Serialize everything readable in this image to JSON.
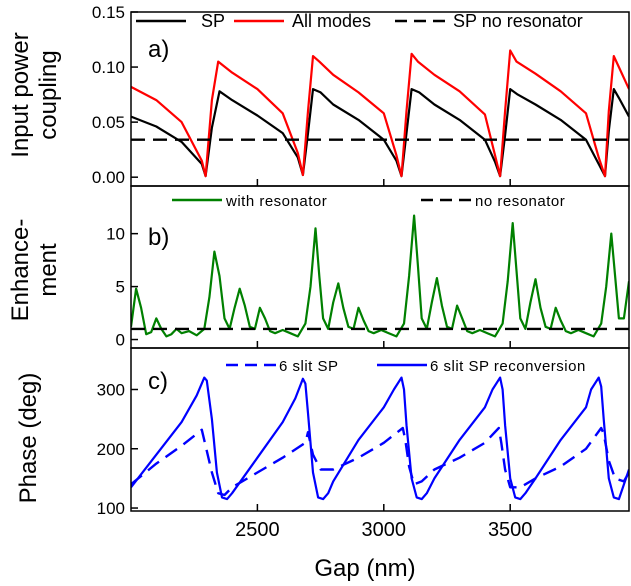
{
  "chart_data": [
    {
      "type": "line",
      "panel_label": "a)",
      "ylabel_lines": [
        "Input power",
        "coupling"
      ],
      "xlim": [
        2000,
        3970
      ],
      "ylim": [
        -0.008,
        0.15
      ],
      "yticks": [
        0.0,
        0.05,
        0.1,
        0.15
      ],
      "ytick_labels": [
        "0.00",
        "0.05",
        "0.10",
        "0.15"
      ],
      "legend_position": "top",
      "series": [
        {
          "name": "SP",
          "color": "#000000",
          "dash": "solid",
          "x": [
            2000,
            2100,
            2200,
            2280,
            2295,
            2320,
            2350,
            2400,
            2500,
            2600,
            2660,
            2680,
            2700,
            2720,
            2750,
            2800,
            2900,
            3000,
            3050,
            3070,
            3090,
            3110,
            3140,
            3200,
            3300,
            3400,
            3440,
            3460,
            3480,
            3500,
            3530,
            3600,
            3700,
            3800,
            3850,
            3875,
            3890,
            3910,
            3930,
            3970
          ],
          "values": [
            0.055,
            0.046,
            0.032,
            0.012,
            0.001,
            0.045,
            0.078,
            0.07,
            0.056,
            0.04,
            0.018,
            0.002,
            0.04,
            0.08,
            0.077,
            0.066,
            0.052,
            0.034,
            0.015,
            0.001,
            0.04,
            0.08,
            0.077,
            0.066,
            0.052,
            0.034,
            0.014,
            0.001,
            0.038,
            0.08,
            0.075,
            0.066,
            0.052,
            0.034,
            0.012,
            0.001,
            0.042,
            0.08,
            0.072,
            0.055
          ]
        },
        {
          "name": "All modes",
          "color": "#ff0000",
          "dash": "solid",
          "x": [
            2000,
            2100,
            2200,
            2280,
            2295,
            2320,
            2345,
            2400,
            2500,
            2600,
            2660,
            2680,
            2700,
            2720,
            2745,
            2800,
            2900,
            3000,
            3050,
            3070,
            3090,
            3110,
            3135,
            3200,
            3300,
            3400,
            3440,
            3460,
            3480,
            3500,
            3525,
            3600,
            3700,
            3800,
            3850,
            3875,
            3890,
            3910,
            3930,
            3970
          ],
          "values": [
            0.082,
            0.07,
            0.05,
            0.015,
            0.001,
            0.07,
            0.105,
            0.095,
            0.08,
            0.058,
            0.022,
            0.002,
            0.06,
            0.11,
            0.105,
            0.093,
            0.077,
            0.058,
            0.02,
            0.001,
            0.06,
            0.112,
            0.105,
            0.093,
            0.078,
            0.057,
            0.02,
            0.001,
            0.06,
            0.115,
            0.105,
            0.094,
            0.078,
            0.058,
            0.018,
            0.001,
            0.06,
            0.11,
            0.1,
            0.08
          ]
        },
        {
          "name": "SP no resonator",
          "color": "#000000",
          "dash": "dashed",
          "x": [
            2000,
            3970
          ],
          "values": [
            0.034,
            0.034
          ]
        }
      ]
    },
    {
      "type": "line",
      "panel_label": "b)",
      "ylabel_lines": [
        "Enhance-",
        "ment"
      ],
      "xlim": [
        2000,
        3970
      ],
      "ylim": [
        -0.8,
        14.5
      ],
      "yticks": [
        0,
        5,
        10
      ],
      "ytick_labels": [
        "0",
        "5",
        "10"
      ],
      "legend_position": "top",
      "series": [
        {
          "name": "with resonator",
          "color": "#008000",
          "dash": "solid",
          "x": [
            2000,
            2020,
            2040,
            2060,
            2080,
            2100,
            2120,
            2140,
            2160,
            2180,
            2200,
            2230,
            2260,
            2290,
            2310,
            2330,
            2350,
            2370,
            2390,
            2410,
            2430,
            2450,
            2470,
            2490,
            2510,
            2530,
            2550,
            2570,
            2600,
            2630,
            2660,
            2690,
            2710,
            2730,
            2745,
            2760,
            2780,
            2800,
            2820,
            2840,
            2860,
            2880,
            2900,
            2920,
            2940,
            2960,
            2990,
            3020,
            3050,
            3080,
            3100,
            3120,
            3135,
            3150,
            3170,
            3190,
            3210,
            3230,
            3250,
            3270,
            3290,
            3310,
            3330,
            3350,
            3380,
            3410,
            3440,
            3470,
            3490,
            3510,
            3525,
            3540,
            3560,
            3580,
            3600,
            3620,
            3640,
            3660,
            3680,
            3700,
            3720,
            3740,
            3770,
            3800,
            3830,
            3860,
            3880,
            3900,
            3915,
            3930,
            3950,
            3970
          ],
          "values": [
            1.2,
            4.8,
            3.0,
            0.5,
            0.7,
            2.0,
            1.0,
            0.3,
            0.5,
            1.0,
            0.6,
            0.8,
            0.4,
            1.0,
            4.0,
            8.3,
            6.0,
            2.0,
            1.0,
            3.0,
            4.8,
            3.2,
            1.2,
            1.0,
            3.0,
            2.0,
            0.8,
            0.6,
            0.9,
            0.6,
            0.3,
            1.5,
            5.0,
            10.5,
            6.0,
            2.0,
            1.0,
            3.5,
            5.3,
            3.0,
            1.2,
            1.0,
            3.0,
            1.8,
            0.8,
            0.6,
            0.9,
            0.6,
            0.3,
            1.5,
            6.0,
            11.7,
            7.0,
            2.0,
            1.0,
            3.5,
            5.8,
            3.2,
            1.2,
            1.0,
            3.2,
            2.0,
            0.8,
            0.6,
            0.9,
            0.6,
            0.3,
            1.5,
            5.5,
            11.0,
            6.5,
            2.0,
            1.0,
            3.5,
            5.7,
            3.0,
            1.2,
            1.0,
            3.0,
            1.8,
            0.8,
            0.6,
            0.9,
            0.6,
            0.3,
            1.5,
            5.0,
            10.0,
            6.0,
            2.0,
            2.0,
            5.5
          ]
        },
        {
          "name": "no resonator",
          "color": "#000000",
          "dash": "dashed",
          "x": [
            2000,
            3970
          ],
          "values": [
            1.0,
            1.0
          ]
        }
      ]
    },
    {
      "type": "line",
      "panel_label": "c)",
      "ylabel_lines": [
        "Phase (deg)"
      ],
      "xlabel": "Gap (nm)",
      "xlim": [
        2000,
        3970
      ],
      "ylim": [
        95,
        370
      ],
      "yticks": [
        100,
        200,
        300
      ],
      "ytick_labels": [
        "100",
        "200",
        "300"
      ],
      "xticks": [
        2500,
        3000,
        3500
      ],
      "xtick_labels": [
        "2500",
        "3000",
        "3500"
      ],
      "legend_position": "top",
      "series": [
        {
          "name": "6 slit SP",
          "color": "#0000ff",
          "dash": "dashed",
          "x": [
            2000,
            2100,
            2200,
            2280,
            2295,
            2320,
            2345,
            2370,
            2400,
            2500,
            2600,
            2690,
            2700,
            2720,
            2750,
            2800,
            2900,
            3000,
            3075,
            3085,
            3100,
            3120,
            3150,
            3200,
            3300,
            3400,
            3455,
            3465,
            3480,
            3500,
            3540,
            3600,
            3700,
            3800,
            3860,
            3870,
            3890,
            3915,
            3950,
            3970
          ],
          "values": [
            140,
            175,
            205,
            232,
            205,
            160,
            125,
            122,
            135,
            160,
            185,
            210,
            228,
            190,
            165,
            165,
            185,
            210,
            235,
            215,
            170,
            140,
            145,
            165,
            185,
            210,
            235,
            210,
            165,
            135,
            135,
            150,
            170,
            200,
            235,
            225,
            180,
            150,
            145,
            160
          ]
        },
        {
          "name": "6 slit SP reconversion",
          "color": "#0000ff",
          "dash": "solid",
          "x": [
            2000,
            2100,
            2200,
            2260,
            2290,
            2300,
            2320,
            2340,
            2360,
            2380,
            2400,
            2500,
            2600,
            2650,
            2680,
            2690,
            2700,
            2720,
            2740,
            2760,
            2780,
            2800,
            2900,
            3000,
            3040,
            3070,
            3080,
            3090,
            3110,
            3130,
            3150,
            3170,
            3200,
            3300,
            3400,
            3430,
            3460,
            3470,
            3480,
            3500,
            3520,
            3540,
            3560,
            3600,
            3700,
            3800,
            3820,
            3850,
            3860,
            3870,
            3890,
            3910,
            3930,
            3970
          ],
          "values": [
            135,
            190,
            245,
            290,
            320,
            315,
            250,
            160,
            118,
            115,
            125,
            185,
            245,
            285,
            318,
            310,
            260,
            160,
            118,
            115,
            125,
            145,
            215,
            270,
            300,
            320,
            300,
            240,
            150,
            118,
            115,
            125,
            150,
            215,
            270,
            300,
            320,
            300,
            240,
            150,
            118,
            115,
            125,
            150,
            215,
            270,
            300,
            320,
            305,
            250,
            150,
            118,
            115,
            165
          ]
        }
      ]
    }
  ]
}
